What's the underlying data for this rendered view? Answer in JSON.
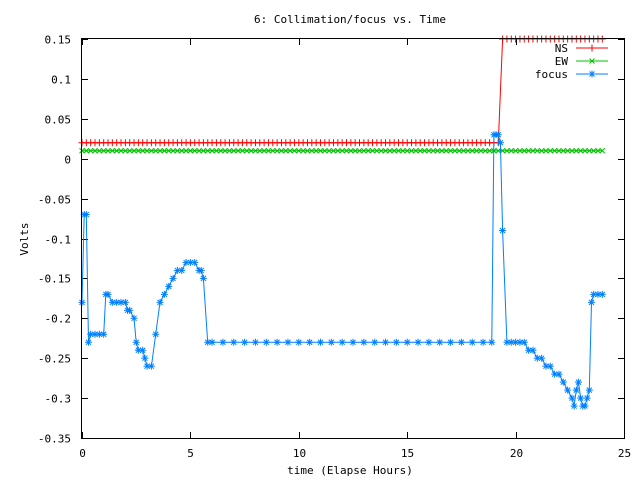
{
  "chart_data": {
    "type": "line",
    "title": "6: Collimation/focus vs. Time",
    "xlabel": "time (Elapse Hours)",
    "ylabel": "Volts",
    "xlim": [
      0,
      25
    ],
    "ylim": [
      -0.35,
      0.15
    ],
    "x_ticks": [
      0,
      5,
      10,
      15,
      20,
      25
    ],
    "x_tick_labels": [
      "0",
      "5",
      "10",
      "15",
      "20",
      "25"
    ],
    "y_ticks": [
      0.15,
      0.1,
      0.05,
      0,
      -0.05,
      -0.1,
      -0.15,
      -0.2,
      -0.25,
      -0.3,
      -0.35
    ],
    "y_tick_labels": [
      "0.15",
      "0.1",
      "0.05",
      "0",
      "-0.05",
      "-0.1",
      "-0.15",
      "-0.2",
      "-0.25",
      "-0.3",
      "-0.35"
    ],
    "grid": false,
    "legend_position": "top-right",
    "series": [
      {
        "name": "NS",
        "color": "#ff0000",
        "marker": "plus",
        "x": [
          0,
          0.2,
          0.4,
          0.6,
          0.8,
          1.0,
          1.2,
          1.4,
          1.6,
          1.8,
          2.0,
          2.2,
          2.4,
          2.6,
          2.8,
          3.0,
          3.2,
          3.4,
          3.6,
          3.8,
          4.0,
          4.2,
          4.4,
          4.6,
          4.8,
          5.0,
          5.2,
          5.4,
          5.6,
          5.8,
          6.0,
          6.2,
          6.4,
          6.6,
          6.8,
          7.0,
          7.2,
          7.4,
          7.6,
          7.8,
          8.0,
          8.2,
          8.4,
          8.6,
          8.8,
          9.0,
          9.2,
          9.4,
          9.6,
          9.8,
          10.0,
          10.2,
          10.4,
          10.6,
          10.8,
          11.0,
          11.2,
          11.4,
          11.6,
          11.8,
          12.0,
          12.2,
          12.4,
          12.6,
          12.8,
          13.0,
          13.2,
          13.4,
          13.6,
          13.8,
          14.0,
          14.2,
          14.4,
          14.6,
          14.8,
          15.0,
          15.2,
          15.4,
          15.6,
          15.8,
          16.0,
          16.2,
          16.4,
          16.6,
          16.8,
          17.0,
          17.2,
          17.4,
          17.6,
          17.8,
          18.0,
          18.2,
          18.4,
          18.6,
          18.8,
          19.0,
          19.2,
          19.4,
          19.6,
          19.8,
          20.0,
          20.2,
          20.4,
          20.6,
          20.8,
          21.0,
          21.2,
          21.4,
          21.6,
          21.8,
          22.0,
          22.2,
          22.4,
          22.6,
          22.8,
          23.0,
          23.2,
          23.4,
          23.6,
          23.8,
          24.0
        ],
        "y": [
          0.02,
          0.02,
          0.02,
          0.02,
          0.02,
          0.02,
          0.02,
          0.02,
          0.02,
          0.02,
          0.02,
          0.02,
          0.02,
          0.02,
          0.02,
          0.02,
          0.02,
          0.02,
          0.02,
          0.02,
          0.02,
          0.02,
          0.02,
          0.02,
          0.02,
          0.02,
          0.02,
          0.02,
          0.02,
          0.02,
          0.02,
          0.02,
          0.02,
          0.02,
          0.02,
          0.02,
          0.02,
          0.02,
          0.02,
          0.02,
          0.02,
          0.02,
          0.02,
          0.02,
          0.02,
          0.02,
          0.02,
          0.02,
          0.02,
          0.02,
          0.02,
          0.02,
          0.02,
          0.02,
          0.02,
          0.02,
          0.02,
          0.02,
          0.02,
          0.02,
          0.02,
          0.02,
          0.02,
          0.02,
          0.02,
          0.02,
          0.02,
          0.02,
          0.02,
          0.02,
          0.02,
          0.02,
          0.02,
          0.02,
          0.02,
          0.02,
          0.02,
          0.02,
          0.02,
          0.02,
          0.02,
          0.02,
          0.02,
          0.02,
          0.02,
          0.02,
          0.02,
          0.02,
          0.02,
          0.02,
          0.02,
          0.02,
          0.02,
          0.02,
          0.02,
          0.02,
          0.02,
          0.15,
          0.15,
          0.15,
          0.15,
          0.15,
          0.15,
          0.15,
          0.15,
          0.15,
          0.15,
          0.15,
          0.15,
          0.15,
          0.15,
          0.15,
          0.15,
          0.15,
          0.15,
          0.15,
          0.15,
          0.15,
          0.15,
          0.15,
          0.15
        ]
      },
      {
        "name": "EW",
        "color": "#00c000",
        "marker": "cross",
        "x": [
          0,
          0.2,
          0.4,
          0.6,
          0.8,
          1.0,
          1.2,
          1.4,
          1.6,
          1.8,
          2.0,
          2.2,
          2.4,
          2.6,
          2.8,
          3.0,
          3.2,
          3.4,
          3.6,
          3.8,
          4.0,
          4.2,
          4.4,
          4.6,
          4.8,
          5.0,
          5.2,
          5.4,
          5.6,
          5.8,
          6.0,
          6.2,
          6.4,
          6.6,
          6.8,
          7.0,
          7.2,
          7.4,
          7.6,
          7.8,
          8.0,
          8.2,
          8.4,
          8.6,
          8.8,
          9.0,
          9.2,
          9.4,
          9.6,
          9.8,
          10.0,
          10.2,
          10.4,
          10.6,
          10.8,
          11.0,
          11.2,
          11.4,
          11.6,
          11.8,
          12.0,
          12.2,
          12.4,
          12.6,
          12.8,
          13.0,
          13.2,
          13.4,
          13.6,
          13.8,
          14.0,
          14.2,
          14.4,
          14.6,
          14.8,
          15.0,
          15.2,
          15.4,
          15.6,
          15.8,
          16.0,
          16.2,
          16.4,
          16.6,
          16.8,
          17.0,
          17.2,
          17.4,
          17.6,
          17.8,
          18.0,
          18.2,
          18.4,
          18.6,
          18.8,
          19.0,
          19.2,
          19.4,
          19.6,
          19.8,
          20.0,
          20.2,
          20.4,
          20.6,
          20.8,
          21.0,
          21.2,
          21.4,
          21.6,
          21.8,
          22.0,
          22.2,
          22.4,
          22.6,
          22.8,
          23.0,
          23.2,
          23.4,
          23.6,
          23.8,
          24.0
        ],
        "y": [
          0.01,
          0.01,
          0.01,
          0.01,
          0.01,
          0.01,
          0.01,
          0.01,
          0.01,
          0.01,
          0.01,
          0.01,
          0.01,
          0.01,
          0.01,
          0.01,
          0.01,
          0.01,
          0.01,
          0.01,
          0.01,
          0.01,
          0.01,
          0.01,
          0.01,
          0.01,
          0.01,
          0.01,
          0.01,
          0.01,
          0.01,
          0.01,
          0.01,
          0.01,
          0.01,
          0.01,
          0.01,
          0.01,
          0.01,
          0.01,
          0.01,
          0.01,
          0.01,
          0.01,
          0.01,
          0.01,
          0.01,
          0.01,
          0.01,
          0.01,
          0.01,
          0.01,
          0.01,
          0.01,
          0.01,
          0.01,
          0.01,
          0.01,
          0.01,
          0.01,
          0.01,
          0.01,
          0.01,
          0.01,
          0.01,
          0.01,
          0.01,
          0.01,
          0.01,
          0.01,
          0.01,
          0.01,
          0.01,
          0.01,
          0.01,
          0.01,
          0.01,
          0.01,
          0.01,
          0.01,
          0.01,
          0.01,
          0.01,
          0.01,
          0.01,
          0.01,
          0.01,
          0.01,
          0.01,
          0.01,
          0.01,
          0.01,
          0.01,
          0.01,
          0.01,
          0.01,
          0.01,
          0.01,
          0.01,
          0.01,
          0.01,
          0.01,
          0.01,
          0.01,
          0.01,
          0.01,
          0.01,
          0.01,
          0.01,
          0.01,
          0.01,
          0.01,
          0.01,
          0.01,
          0.01,
          0.01,
          0.01,
          0.01,
          0.01,
          0.01,
          0.01
        ]
      },
      {
        "name": "focus",
        "color": "#0080ff",
        "marker": "star",
        "x": [
          0.0,
          0.1,
          0.2,
          0.3,
          0.4,
          0.6,
          0.8,
          1.0,
          1.1,
          1.2,
          1.4,
          1.6,
          1.8,
          2.0,
          2.1,
          2.2,
          2.4,
          2.5,
          2.6,
          2.8,
          2.9,
          3.0,
          3.2,
          3.4,
          3.6,
          3.8,
          4.0,
          4.2,
          4.4,
          4.6,
          4.8,
          5.0,
          5.2,
          5.4,
          5.5,
          5.6,
          5.8,
          6.0,
          6.5,
          7.0,
          7.5,
          8.0,
          8.5,
          9.0,
          9.5,
          10.0,
          10.5,
          11.0,
          11.5,
          12.0,
          12.5,
          13.0,
          13.5,
          14.0,
          14.5,
          15.0,
          15.5,
          16.0,
          16.5,
          17.0,
          17.5,
          18.0,
          18.5,
          18.9,
          19.0,
          19.1,
          19.2,
          19.3,
          19.4,
          19.6,
          19.8,
          20.0,
          20.2,
          20.4,
          20.6,
          20.8,
          21.0,
          21.2,
          21.4,
          21.6,
          21.8,
          22.0,
          22.2,
          22.4,
          22.6,
          22.7,
          22.8,
          22.9,
          23.0,
          23.1,
          23.2,
          23.3,
          23.4,
          23.5,
          23.6,
          23.8,
          24.0
        ],
        "y": [
          -0.18,
          -0.07,
          -0.07,
          -0.23,
          -0.22,
          -0.22,
          -0.22,
          -0.22,
          -0.17,
          -0.17,
          -0.18,
          -0.18,
          -0.18,
          -0.18,
          -0.19,
          -0.19,
          -0.2,
          -0.23,
          -0.24,
          -0.24,
          -0.25,
          -0.26,
          -0.26,
          -0.22,
          -0.18,
          -0.17,
          -0.16,
          -0.15,
          -0.14,
          -0.14,
          -0.13,
          -0.13,
          -0.13,
          -0.14,
          -0.14,
          -0.15,
          -0.23,
          -0.23,
          -0.23,
          -0.23,
          -0.23,
          -0.23,
          -0.23,
          -0.23,
          -0.23,
          -0.23,
          -0.23,
          -0.23,
          -0.23,
          -0.23,
          -0.23,
          -0.23,
          -0.23,
          -0.23,
          -0.23,
          -0.23,
          -0.23,
          -0.23,
          -0.23,
          -0.23,
          -0.23,
          -0.23,
          -0.23,
          -0.23,
          0.03,
          0.03,
          0.03,
          0.02,
          -0.09,
          -0.23,
          -0.23,
          -0.23,
          -0.23,
          -0.23,
          -0.24,
          -0.24,
          -0.25,
          -0.25,
          -0.26,
          -0.26,
          -0.27,
          -0.27,
          -0.28,
          -0.29,
          -0.3,
          -0.31,
          -0.29,
          -0.28,
          -0.3,
          -0.31,
          -0.31,
          -0.3,
          -0.29,
          -0.18,
          -0.17,
          -0.17,
          -0.17
        ]
      }
    ]
  }
}
